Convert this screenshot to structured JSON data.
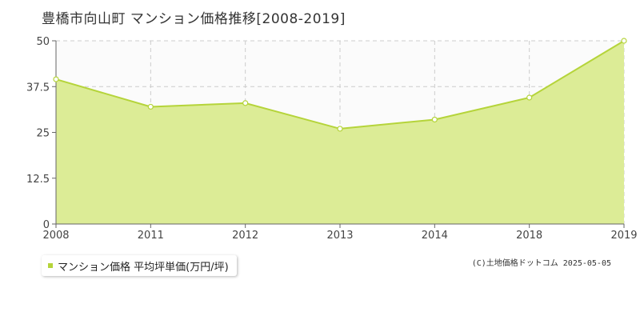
{
  "chart_data": {
    "type": "area",
    "title": "豊橋市向山町 マンション価格推移[2008-2019]",
    "x": [
      "2008",
      "2011",
      "2012",
      "2013",
      "2014",
      "2018",
      "2019"
    ],
    "series": [
      {
        "name": "マンション価格 平均坪単価(万円/坪)",
        "values": [
          39.5,
          32,
          33,
          26,
          28.5,
          34.5,
          50
        ]
      }
    ],
    "y_ticks": [
      "0",
      "12.5",
      "25",
      "37.5",
      "50"
    ],
    "ylim": [
      0,
      50
    ],
    "grid": true,
    "legend_position": "bottom-left",
    "colors": {
      "fill": "#dcec96",
      "line": "#b5d43a",
      "grid": "#cccccc"
    }
  },
  "copyright": "(C)土地価格ドットコム 2025-05-05"
}
